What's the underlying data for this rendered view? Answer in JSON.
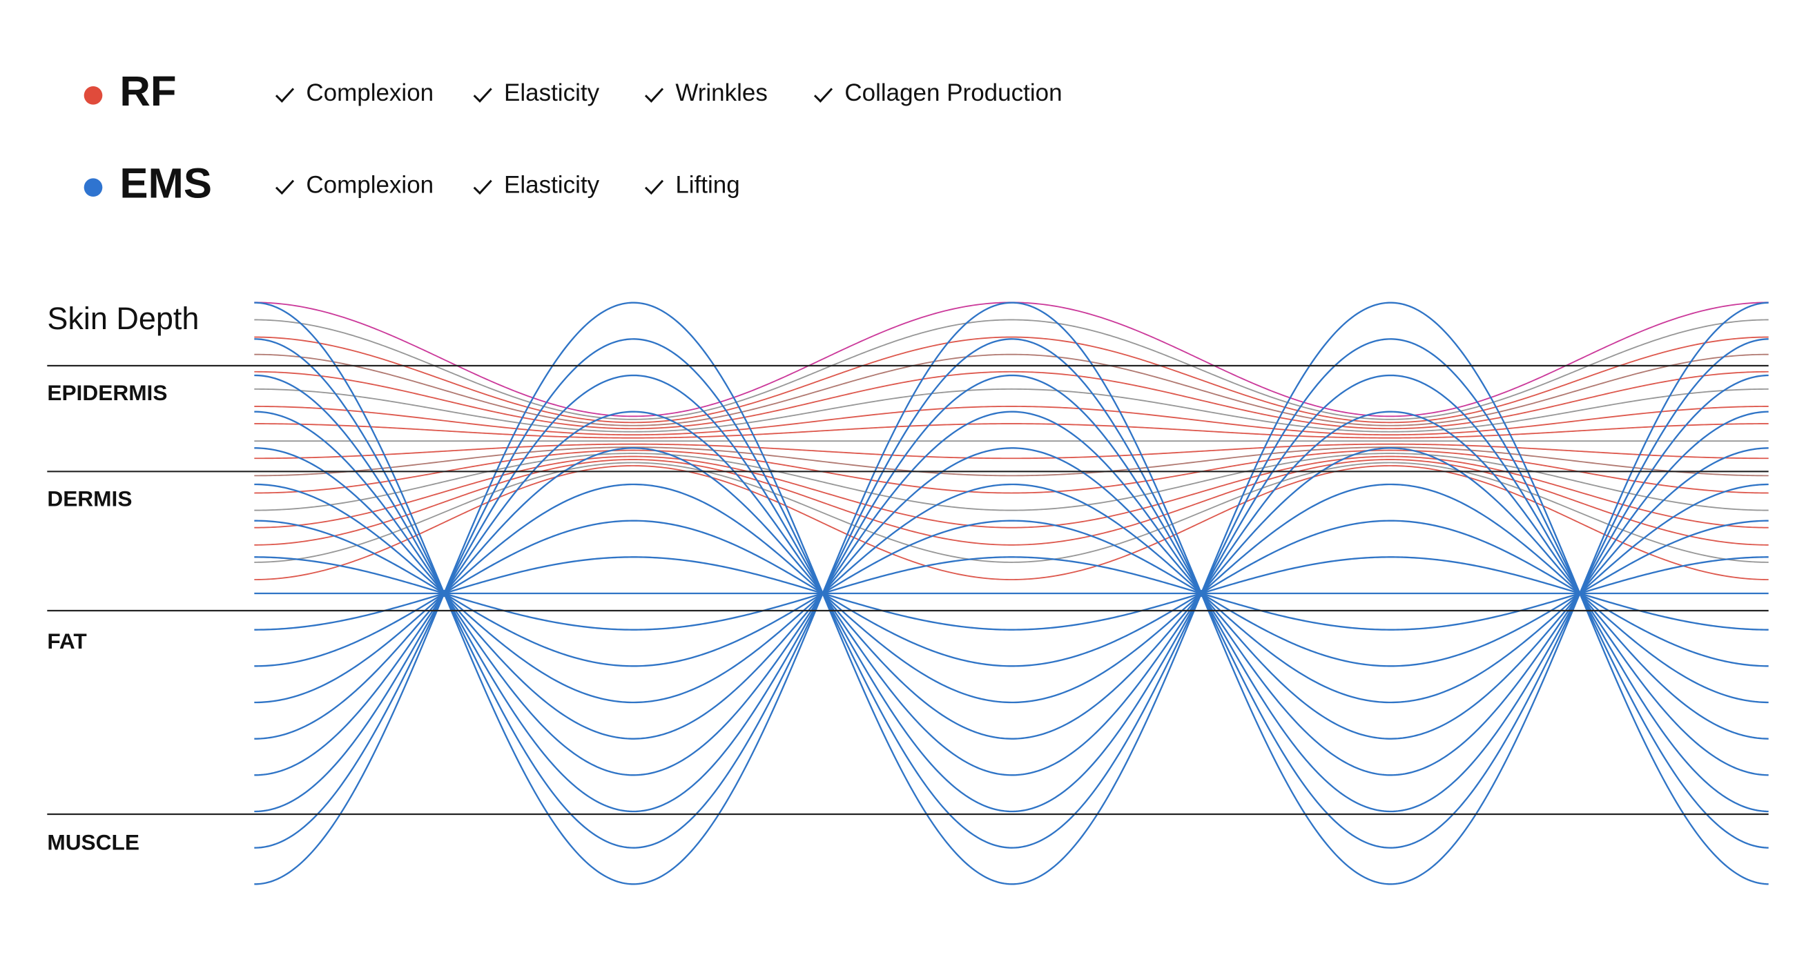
{
  "legend": [
    {
      "name": "RF",
      "color": "#e04b3b",
      "benefits": [
        "Complexion",
        "Elasticity",
        "Wrinkles",
        "Collagen Production"
      ]
    },
    {
      "name": "EMS",
      "color": "#2f74d0",
      "benefits": [
        "Complexion",
        "Elasticity",
        "Lifting"
      ]
    }
  ],
  "diagram": {
    "axis_label": "Skin Depth",
    "layers": [
      "EPIDERMIS",
      "DERMIS",
      "FAT",
      "MUSCLE"
    ]
  }
}
